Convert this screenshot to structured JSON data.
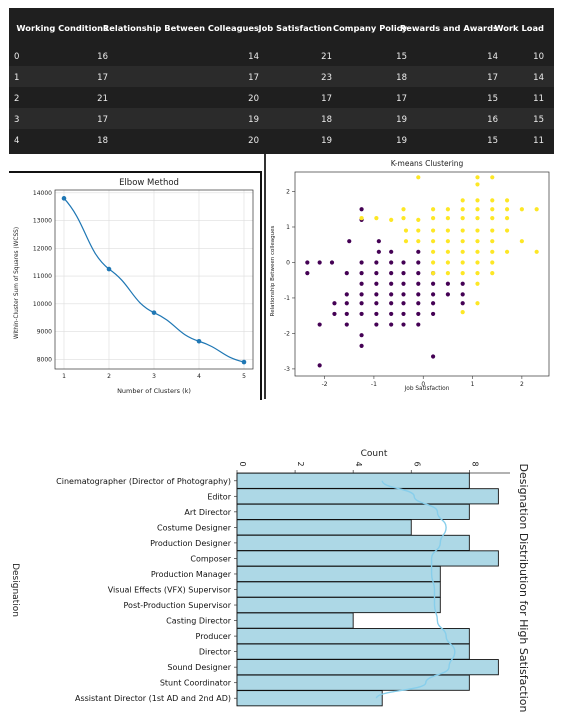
{
  "table": {
    "columns": [
      "",
      "Working Conditions",
      "Relationship Between Colleagues",
      "Job Satisfaction",
      "Company Policy",
      "Rewards and Awards",
      "Work Load"
    ],
    "rows": [
      [
        "0",
        "16",
        "14",
        "21",
        "15",
        "14",
        "10"
      ],
      [
        "1",
        "17",
        "17",
        "23",
        "18",
        "17",
        "14"
      ],
      [
        "2",
        "21",
        "20",
        "17",
        "17",
        "15",
        "11"
      ],
      [
        "3",
        "17",
        "19",
        "18",
        "19",
        "16",
        "15"
      ],
      [
        "4",
        "18",
        "20",
        "19",
        "19",
        "15",
        "11"
      ]
    ]
  },
  "colors": {
    "table_bg": "#1f1f1f",
    "table_alt": "#2b2b2b",
    "line": "#1f77b4",
    "cluster0": "#440154",
    "cluster1": "#fde725",
    "bar": "#add8e6",
    "kde": "#87ceeb"
  },
  "chart_data": [
    {
      "type": "line",
      "title": "Elbow Method",
      "xlabel": "Number of Clusters (k)",
      "ylabel": "Within-Cluster Sum of Squares (WCSS)",
      "x": [
        1,
        2,
        3,
        4,
        5
      ],
      "y": [
        13800,
        11250,
        9680,
        8650,
        7900
      ],
      "xticks": [
        "1",
        "2",
        "3",
        "4",
        "5"
      ],
      "yticks": [
        "8000",
        "9000",
        "10000",
        "11000",
        "12000",
        "13000",
        "14000"
      ],
      "xlim": [
        0.8,
        5.2
      ],
      "ylim": [
        7650,
        14100
      ],
      "grid": true,
      "marker": "circle"
    },
    {
      "type": "scatter",
      "title": "K-means Clustering",
      "xlabel": "Job Satisfaction",
      "ylabel": "Relationship Between colleagues",
      "xticks": [
        "-2",
        "-1",
        "0",
        "1",
        "2"
      ],
      "yticks": [
        "-3",
        "-2",
        "-1",
        "0",
        "1",
        "2"
      ],
      "xlim": [
        -2.6,
        2.55
      ],
      "ylim": [
        -3.2,
        2.55
      ],
      "series": [
        {
          "cluster": 0,
          "points": [
            [
              -2.35,
              0
            ],
            [
              -2.35,
              -0.3
            ],
            [
              -2.1,
              0
            ],
            [
              -2.1,
              -1.75
            ],
            [
              -2.1,
              -2.9
            ],
            [
              -1.85,
              0
            ],
            [
              -1.8,
              -1.15
            ],
            [
              -1.8,
              -1.45
            ],
            [
              -1.55,
              -0.9
            ],
            [
              -1.55,
              -0.3
            ],
            [
              -1.55,
              -1.15
            ],
            [
              -1.55,
              -1.45
            ],
            [
              -1.55,
              -1.75
            ],
            [
              -1.5,
              0.6
            ],
            [
              -1.25,
              1.5
            ],
            [
              -1.25,
              1.2
            ],
            [
              -1.25,
              0
            ],
            [
              -1.25,
              -0.3
            ],
            [
              -1.25,
              -0.6
            ],
            [
              -1.25,
              -0.9
            ],
            [
              -1.25,
              -1.15
            ],
            [
              -1.25,
              -1.45
            ],
            [
              -1.25,
              -2.05
            ],
            [
              -1.25,
              -2.35
            ],
            [
              -0.95,
              0
            ],
            [
              -0.95,
              -0.3
            ],
            [
              -0.95,
              -0.6
            ],
            [
              -0.95,
              -0.9
            ],
            [
              -0.95,
              -1.15
            ],
            [
              -0.95,
              -1.45
            ],
            [
              -0.95,
              -1.75
            ],
            [
              -0.9,
              0.6
            ],
            [
              -0.9,
              0.3
            ],
            [
              -0.65,
              0.3
            ],
            [
              -0.65,
              0
            ],
            [
              -0.65,
              -0.3
            ],
            [
              -0.65,
              -0.6
            ],
            [
              -0.65,
              -0.9
            ],
            [
              -0.65,
              -1.15
            ],
            [
              -0.65,
              -1.45
            ],
            [
              -0.65,
              -1.75
            ],
            [
              -0.4,
              0
            ],
            [
              -0.4,
              -0.3
            ],
            [
              -0.4,
              -0.6
            ],
            [
              -0.4,
              -0.9
            ],
            [
              -0.4,
              -1.15
            ],
            [
              -0.4,
              -1.45
            ],
            [
              -0.4,
              -1.75
            ],
            [
              -0.1,
              0.3
            ],
            [
              -0.1,
              0
            ],
            [
              -0.1,
              -0.3
            ],
            [
              -0.1,
              -0.6
            ],
            [
              -0.1,
              -0.9
            ],
            [
              -0.1,
              -1.15
            ],
            [
              -0.1,
              -1.45
            ],
            [
              -0.1,
              -1.75
            ],
            [
              0.2,
              -0.3
            ],
            [
              0.2,
              -0.6
            ],
            [
              0.2,
              -0.9
            ],
            [
              0.2,
              -1.15
            ],
            [
              0.2,
              -1.45
            ],
            [
              0.2,
              -2.65
            ],
            [
              0.5,
              -0.6
            ],
            [
              0.5,
              -0.9
            ],
            [
              0.8,
              -0.6
            ],
            [
              0.8,
              -0.9
            ],
            [
              0.8,
              -1.15
            ]
          ]
        },
        {
          "cluster": 1,
          "points": [
            [
              -1.25,
              1.25
            ],
            [
              -0.95,
              1.25
            ],
            [
              -0.65,
              1.2
            ],
            [
              -0.4,
              1.5
            ],
            [
              -0.4,
              1.25
            ],
            [
              -0.35,
              0.9
            ],
            [
              -0.35,
              0.6
            ],
            [
              -0.1,
              2.4
            ],
            [
              -0.1,
              1.2
            ],
            [
              -0.1,
              0.9
            ],
            [
              -0.1,
              0.6
            ],
            [
              0.2,
              1.5
            ],
            [
              0.2,
              1.25
            ],
            [
              0.2,
              0.9
            ],
            [
              0.2,
              0.6
            ],
            [
              0.2,
              0.3
            ],
            [
              0.2,
              0
            ],
            [
              0.2,
              -0.3
            ],
            [
              0.5,
              1.5
            ],
            [
              0.5,
              1.25
            ],
            [
              0.5,
              0.9
            ],
            [
              0.5,
              0.6
            ],
            [
              0.5,
              0.3
            ],
            [
              0.5,
              0
            ],
            [
              0.5,
              -0.3
            ],
            [
              0.8,
              1.75
            ],
            [
              0.8,
              1.5
            ],
            [
              0.8,
              1.25
            ],
            [
              0.8,
              0.9
            ],
            [
              0.8,
              0.6
            ],
            [
              0.8,
              0.3
            ],
            [
              0.8,
              0
            ],
            [
              0.8,
              -0.3
            ],
            [
              1.1,
              2.4
            ],
            [
              1.1,
              2.2
            ],
            [
              1.1,
              1.75
            ],
            [
              1.1,
              1.5
            ],
            [
              1.1,
              1.25
            ],
            [
              1.1,
              0.9
            ],
            [
              1.1,
              0.6
            ],
            [
              1.1,
              0.3
            ],
            [
              1.1,
              0
            ],
            [
              1.1,
              -0.3
            ],
            [
              1.1,
              -1.15
            ],
            [
              1.4,
              2.4
            ],
            [
              1.4,
              1.75
            ],
            [
              1.4,
              1.5
            ],
            [
              1.4,
              1.25
            ],
            [
              1.4,
              0.9
            ],
            [
              1.4,
              0.6
            ],
            [
              1.4,
              0.3
            ],
            [
              1.4,
              0
            ],
            [
              1.4,
              -0.3
            ],
            [
              1.7,
              1.75
            ],
            [
              1.7,
              1.5
            ],
            [
              1.7,
              1.25
            ],
            [
              1.7,
              0.9
            ],
            [
              1.7,
              0.3
            ],
            [
              2.0,
              1.5
            ],
            [
              2.0,
              0.6
            ],
            [
              2.3,
              1.5
            ],
            [
              2.3,
              0.3
            ],
            [
              1.1,
              -0.6
            ],
            [
              0.8,
              -1.4
            ]
          ]
        }
      ]
    },
    {
      "type": "bar",
      "orientation": "horizontal",
      "title": "Designation Distribution for High Satisfaction",
      "xlabel": "Count",
      "ylabel": "Designation",
      "xticks": [
        "0",
        "2",
        "4",
        "6",
        "8"
      ],
      "xlim": [
        0,
        9.4
      ],
      "categories": [
        "Cinematographer (Director of Photography)",
        "Editor",
        "Art Director",
        "Costume Designer",
        "Production Designer",
        "Composer",
        "Production Manager",
        "Visual Effects (VFX) Supervisor",
        "Post-Production Supervisor",
        "Casting Director",
        "Producer",
        "Director",
        "Sound Designer",
        "Stunt Coordinator",
        "Assistant Director (1st AD and 2nd AD)"
      ],
      "values": [
        8,
        9,
        8,
        6,
        8,
        9,
        7,
        7,
        7,
        4,
        8,
        8,
        9,
        8,
        5
      ],
      "kde": [
        5.0,
        6.1,
        6.9,
        7.2,
        7.0,
        6.7,
        6.7,
        6.8,
        6.8,
        6.9,
        7.2,
        7.5,
        7.3,
        6.5,
        4.8
      ]
    }
  ]
}
